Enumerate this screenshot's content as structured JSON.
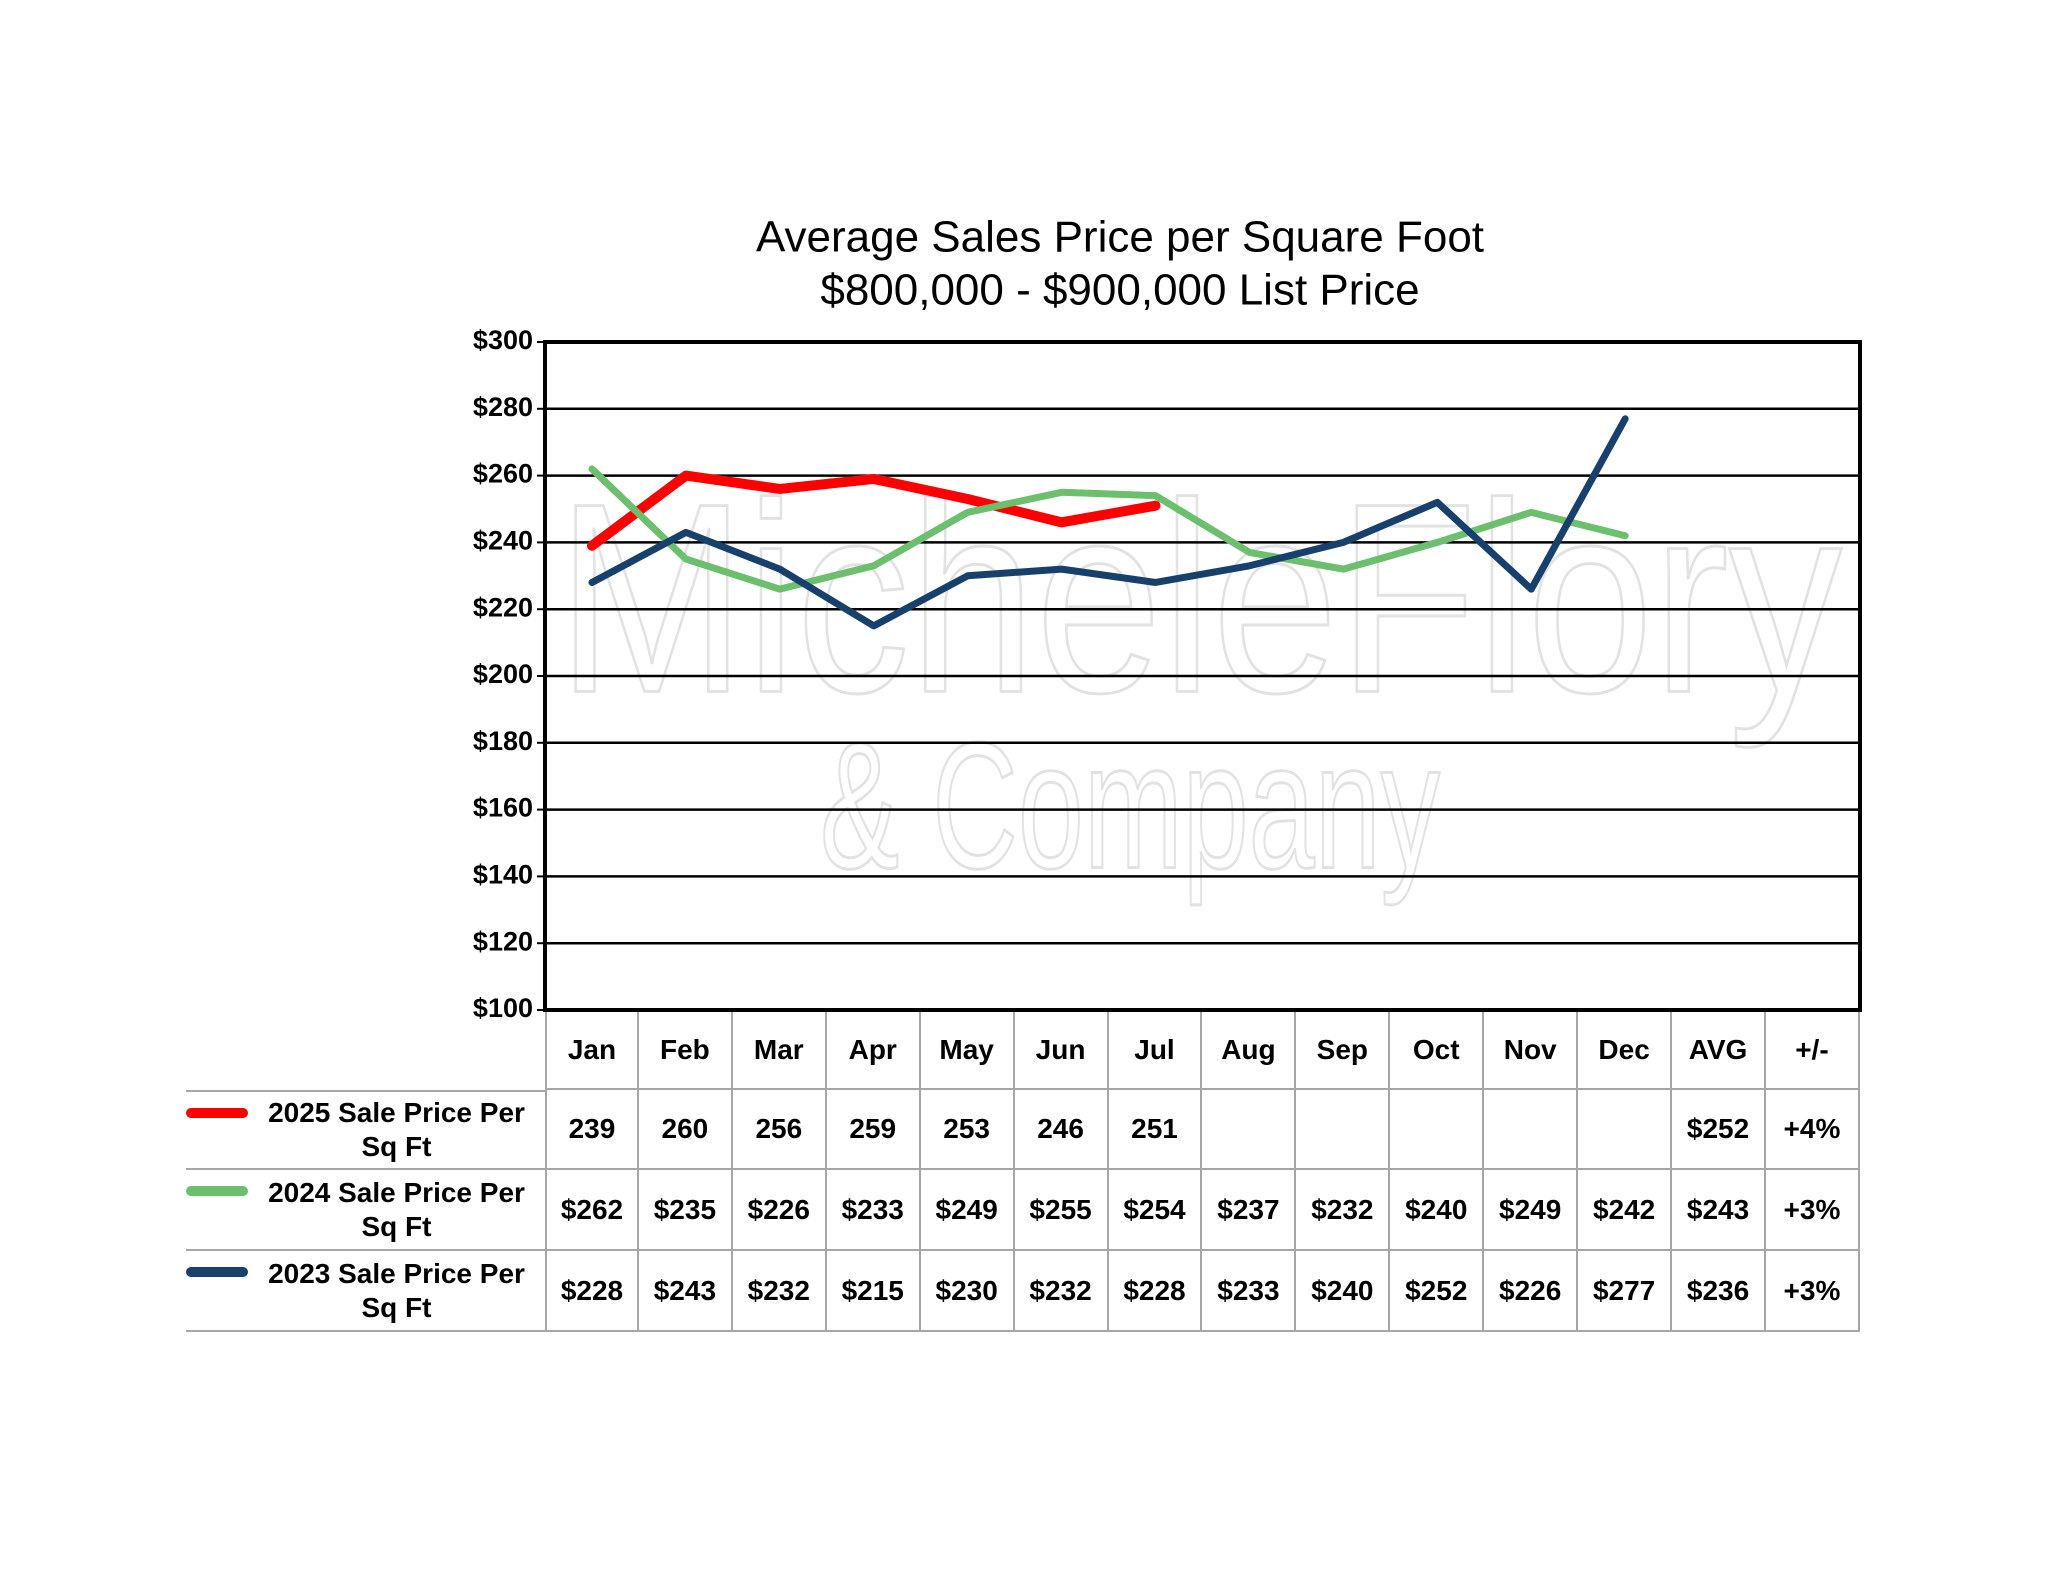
{
  "chart_data": {
    "type": "line",
    "title": "Average Sales Price per Square Foot",
    "subtitle": "$800,000 - $900,000 List Price",
    "watermark": "MicheleFlory",
    "watermark_sub": "& Company",
    "categories": [
      "Jan",
      "Feb",
      "Mar",
      "Apr",
      "May",
      "Jun",
      "Jul",
      "Aug",
      "Sep",
      "Oct",
      "Nov",
      "Dec"
    ],
    "avg_header": "AVG",
    "change_header": "+/-",
    "ylim": [
      100,
      300
    ],
    "yticks": [
      {
        "value": 100,
        "label": "$100"
      },
      {
        "value": 120,
        "label": "$120"
      },
      {
        "value": 140,
        "label": "$140"
      },
      {
        "value": 160,
        "label": "$160"
      },
      {
        "value": 180,
        "label": "$180"
      },
      {
        "value": 200,
        "label": "$200"
      },
      {
        "value": 220,
        "label": "$220"
      },
      {
        "value": 240,
        "label": "$240"
      },
      {
        "value": 260,
        "label": "$260"
      },
      {
        "value": 280,
        "label": "$280"
      },
      {
        "value": 300,
        "label": "$300"
      }
    ],
    "grid": true,
    "series": [
      {
        "name": "2025 Sale Price Per Sq Ft",
        "color": "#ff0000",
        "width": 10,
        "values": [
          239,
          260,
          256,
          259,
          253,
          246,
          251,
          null,
          null,
          null,
          null,
          null
        ],
        "value_labels": [
          "239",
          "260",
          "256",
          "259",
          "253",
          "246",
          "251",
          null,
          null,
          null,
          null,
          null
        ],
        "avg": 252,
        "avg_label": "$252",
        "change": 4,
        "change_label": "+4%"
      },
      {
        "name": "2024 Sale Price Per Sq Ft",
        "color": "#6cbf6c",
        "width": 7,
        "values": [
          262,
          235,
          226,
          233,
          249,
          255,
          254,
          237,
          232,
          240,
          249,
          242
        ],
        "value_labels": [
          "$262",
          "$235",
          "$226",
          "$233",
          "$249",
          "$255",
          "$254",
          "$237",
          "$232",
          "$240",
          "$249",
          "$242"
        ],
        "avg": 243,
        "avg_label": "$243",
        "change": 3,
        "change_label": "+3%"
      },
      {
        "name": "2023 Sale Price Per Sq Ft",
        "color": "#17406d",
        "width": 7,
        "values": [
          228,
          243,
          232,
          215,
          230,
          232,
          228,
          233,
          240,
          252,
          226,
          277
        ],
        "value_labels": [
          "$228",
          "$243",
          "$232",
          "$215",
          "$230",
          "$232",
          "$228",
          "$233",
          "$240",
          "$252",
          "$226",
          "$277"
        ],
        "avg": 236,
        "avg_label": "$236",
        "change": 3,
        "change_label": "+3%"
      }
    ]
  }
}
